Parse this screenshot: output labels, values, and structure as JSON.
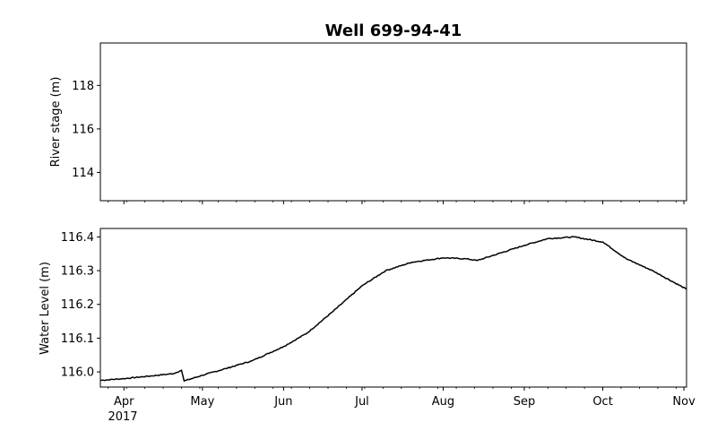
{
  "title": "Well 699-94-41",
  "chart_data": [
    {
      "type": "line",
      "panel": "top",
      "ylabel": "River stage (m)",
      "ylim": [
        112.7,
        119.95
      ],
      "yticks": [
        114,
        116,
        118
      ],
      "series": []
    },
    {
      "type": "line",
      "panel": "bottom",
      "ylabel": "Water Level (m)",
      "ylim": [
        115.955,
        116.425
      ],
      "yticks": [
        116.0,
        116.1,
        116.2,
        116.3,
        116.4
      ],
      "x_tick_labels": [
        "Apr",
        "May",
        "Jun",
        "Jul",
        "Aug",
        "Sep",
        "Oct",
        "Nov"
      ],
      "x_tick_dates": [
        "2017-04-01",
        "2017-05-01",
        "2017-06-01",
        "2017-07-01",
        "2017-08-01",
        "2017-09-01",
        "2017-10-01",
        "2017-11-01"
      ],
      "year_label": "2017",
      "xlim": [
        "2017-03-23",
        "2017-11-02"
      ],
      "series": [
        {
          "color": "#000000",
          "x": [
            "2017-03-23",
            "2017-04-01",
            "2017-04-10",
            "2017-04-20",
            "2017-04-23",
            "2017-04-24",
            "2017-05-01",
            "2017-05-10",
            "2017-05-20",
            "2017-06-01",
            "2017-06-10",
            "2017-06-20",
            "2017-07-01",
            "2017-07-10",
            "2017-07-20",
            "2017-08-01",
            "2017-08-10",
            "2017-08-14",
            "2017-08-20",
            "2017-09-01",
            "2017-09-10",
            "2017-09-20",
            "2017-10-01",
            "2017-10-10",
            "2017-10-20",
            "2017-11-02"
          ],
          "y": [
            115.975,
            115.98,
            115.987,
            115.995,
            116.005,
            115.973,
            115.99,
            116.01,
            116.033,
            116.075,
            116.115,
            116.18,
            116.255,
            116.3,
            116.325,
            116.338,
            116.335,
            116.33,
            116.345,
            116.375,
            116.395,
            116.4,
            116.385,
            116.335,
            116.3,
            116.245
          ]
        }
      ]
    }
  ]
}
